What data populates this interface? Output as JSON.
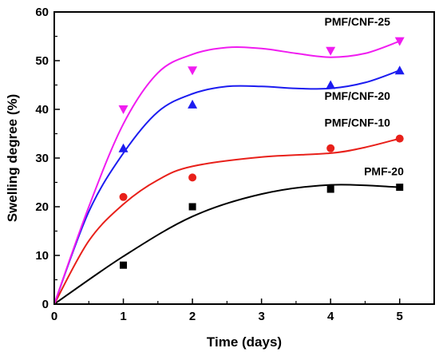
{
  "chart_data": {
    "type": "scatter",
    "xlabel": "Time (days)",
    "ylabel": "Swelling degree (%)",
    "xlim": [
      0,
      5.5
    ],
    "ylim": [
      0,
      60
    ],
    "xticks": [
      0,
      1,
      2,
      3,
      4,
      5
    ],
    "yticks": [
      0,
      10,
      20,
      30,
      40,
      50,
      60
    ],
    "grid": false,
    "legend": "inline labels",
    "series": [
      {
        "name": "PMF-20",
        "marker": "square",
        "color": "#000000",
        "points": [
          [
            0,
            0
          ],
          [
            1,
            8
          ],
          [
            2,
            20
          ],
          [
            4,
            23.6
          ],
          [
            5,
            24
          ]
        ],
        "fit": [
          [
            0,
            0
          ],
          [
            1,
            9.8
          ],
          [
            2,
            18
          ],
          [
            3,
            22.6
          ],
          [
            4,
            24.5
          ],
          [
            5,
            24
          ]
        ]
      },
      {
        "name": "PMF/CNF-10",
        "marker": "circle",
        "color": "#e8201a",
        "points": [
          [
            0,
            0
          ],
          [
            1,
            22
          ],
          [
            2,
            26
          ],
          [
            4,
            32
          ],
          [
            5,
            34
          ]
        ],
        "fit": [
          [
            0,
            0
          ],
          [
            0.5,
            13
          ],
          [
            1,
            20.5
          ],
          [
            1.5,
            25.5
          ],
          [
            2,
            28.3
          ],
          [
            3,
            30.2
          ],
          [
            4,
            31
          ],
          [
            4.5,
            32.2
          ],
          [
            5,
            34
          ]
        ]
      },
      {
        "name": "PMF/CNF-20",
        "marker": "triangle-up",
        "color": "#1c1cf0",
        "points": [
          [
            0,
            0
          ],
          [
            1,
            32
          ],
          [
            2,
            41
          ],
          [
            4,
            45
          ],
          [
            5,
            48
          ]
        ],
        "fit": [
          [
            0,
            0
          ],
          [
            0.5,
            19
          ],
          [
            1,
            31
          ],
          [
            1.5,
            39.5
          ],
          [
            2,
            43.2
          ],
          [
            2.5,
            44.7
          ],
          [
            3,
            44.7
          ],
          [
            3.5,
            44.3
          ],
          [
            4,
            44.3
          ],
          [
            4.5,
            45.5
          ],
          [
            5,
            48
          ]
        ]
      },
      {
        "name": "PMF/CNF-25",
        "marker": "triangle-down",
        "color": "#f01cf0",
        "points": [
          [
            0,
            0
          ],
          [
            1,
            40
          ],
          [
            2,
            48
          ],
          [
            4,
            52
          ],
          [
            5,
            54
          ]
        ],
        "fit": [
          [
            0,
            0
          ],
          [
            0.5,
            20
          ],
          [
            1,
            37
          ],
          [
            1.5,
            47.5
          ],
          [
            2,
            51.3
          ],
          [
            2.5,
            52.7
          ],
          [
            3,
            52.5
          ],
          [
            3.5,
            51.5
          ],
          [
            4,
            50.7
          ],
          [
            4.5,
            51.5
          ],
          [
            5,
            54
          ]
        ]
      }
    ]
  }
}
